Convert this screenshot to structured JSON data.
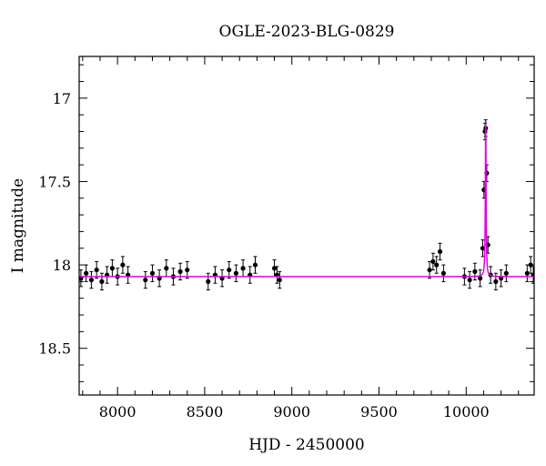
{
  "chart_data": {
    "type": "scatter",
    "title": "OGLE-2023-BLG-0829",
    "xlabel": "HJD - 2450000",
    "ylabel": "I magnitude",
    "xlim": [
      7780,
      10390
    ],
    "ylim": [
      18.78,
      16.75
    ],
    "y_inverted": true,
    "grid": false,
    "x_ticks": [
      8000,
      8500,
      9000,
      9500,
      10000
    ],
    "x_tick_labels": [
      "8000",
      "8500",
      "9000",
      "9500",
      "10000"
    ],
    "y_ticks": [
      17,
      17.5,
      18,
      18.5
    ],
    "y_tick_labels": [
      "17",
      "17.5",
      "18",
      "18.5"
    ],
    "baseline_mag": 18.07,
    "series": [
      {
        "kind": "data",
        "color": "#000000",
        "marker": "filled-circle-with-errorbar",
        "typical_error": 0.05,
        "x": [
          7790,
          7820,
          7850,
          7880,
          7910,
          7940,
          7970,
          8000,
          8030,
          8060,
          8160,
          8200,
          8240,
          8280,
          8320,
          8360,
          8400,
          8520,
          8560,
          8600,
          8640,
          8680,
          8720,
          8760,
          8790,
          8900,
          8915,
          8930,
          9790,
          9810,
          9830,
          9850,
          9870,
          9990,
          10020,
          10050,
          10080,
          10095,
          10102,
          10108,
          10112,
          10118,
          10125,
          10140,
          10170,
          10200,
          10230,
          10350,
          10370,
          10385
        ],
        "y": [
          18.08,
          18.05,
          18.09,
          18.03,
          18.1,
          18.06,
          18.02,
          18.07,
          18.0,
          18.06,
          18.09,
          18.05,
          18.08,
          18.02,
          18.07,
          18.04,
          18.03,
          18.1,
          18.06,
          18.08,
          18.03,
          18.05,
          18.02,
          18.06,
          18.0,
          18.02,
          18.06,
          18.09,
          18.03,
          17.98,
          18.0,
          17.92,
          18.05,
          18.07,
          18.09,
          18.04,
          18.08,
          17.9,
          17.55,
          17.2,
          17.18,
          17.45,
          17.88,
          18.06,
          18.1,
          18.08,
          18.05,
          18.05,
          18.0,
          18.06
        ]
      },
      {
        "kind": "model",
        "color": "#e000e0",
        "t0": 10112,
        "u0_peak_mag": 17.15,
        "tE_days": 6
      }
    ]
  }
}
